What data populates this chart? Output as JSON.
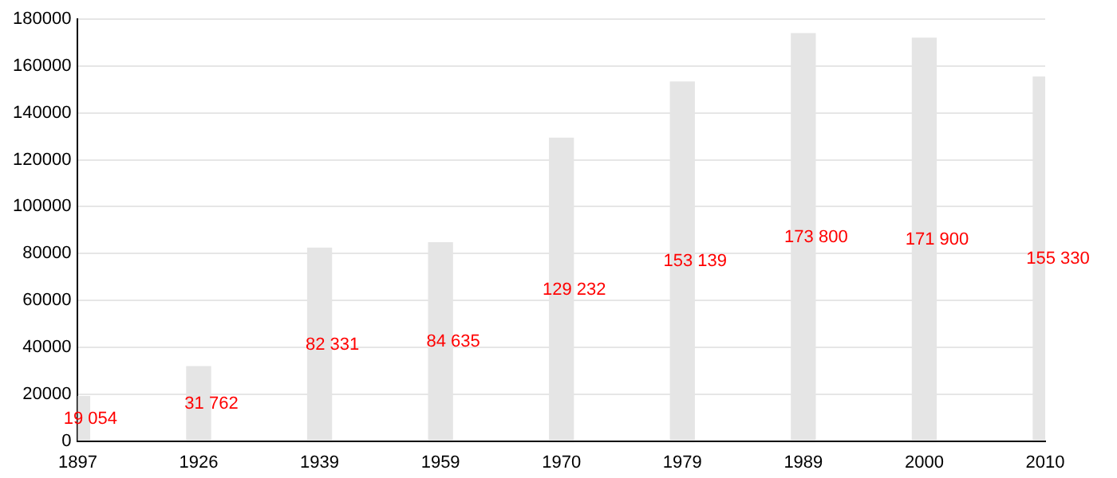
{
  "chart_data": {
    "type": "bar",
    "categories": [
      "1897",
      "1926",
      "1939",
      "1959",
      "1970",
      "1979",
      "1989",
      "2000",
      "2010"
    ],
    "values": [
      19054,
      31762,
      82331,
      84635,
      129232,
      153139,
      173800,
      171900,
      155330
    ],
    "value_labels": [
      "19 054",
      "31 762",
      "82 331",
      "84 635",
      "129 232",
      "153 139",
      "173 800",
      "171 900",
      "155 330"
    ],
    "color": "#e5e5e5",
    "ylim": [
      0,
      180000
    ],
    "yticks": [
      0,
      20000,
      40000,
      60000,
      80000,
      100000,
      120000,
      140000,
      160000,
      180000
    ],
    "grid": "y",
    "legend": false
  }
}
